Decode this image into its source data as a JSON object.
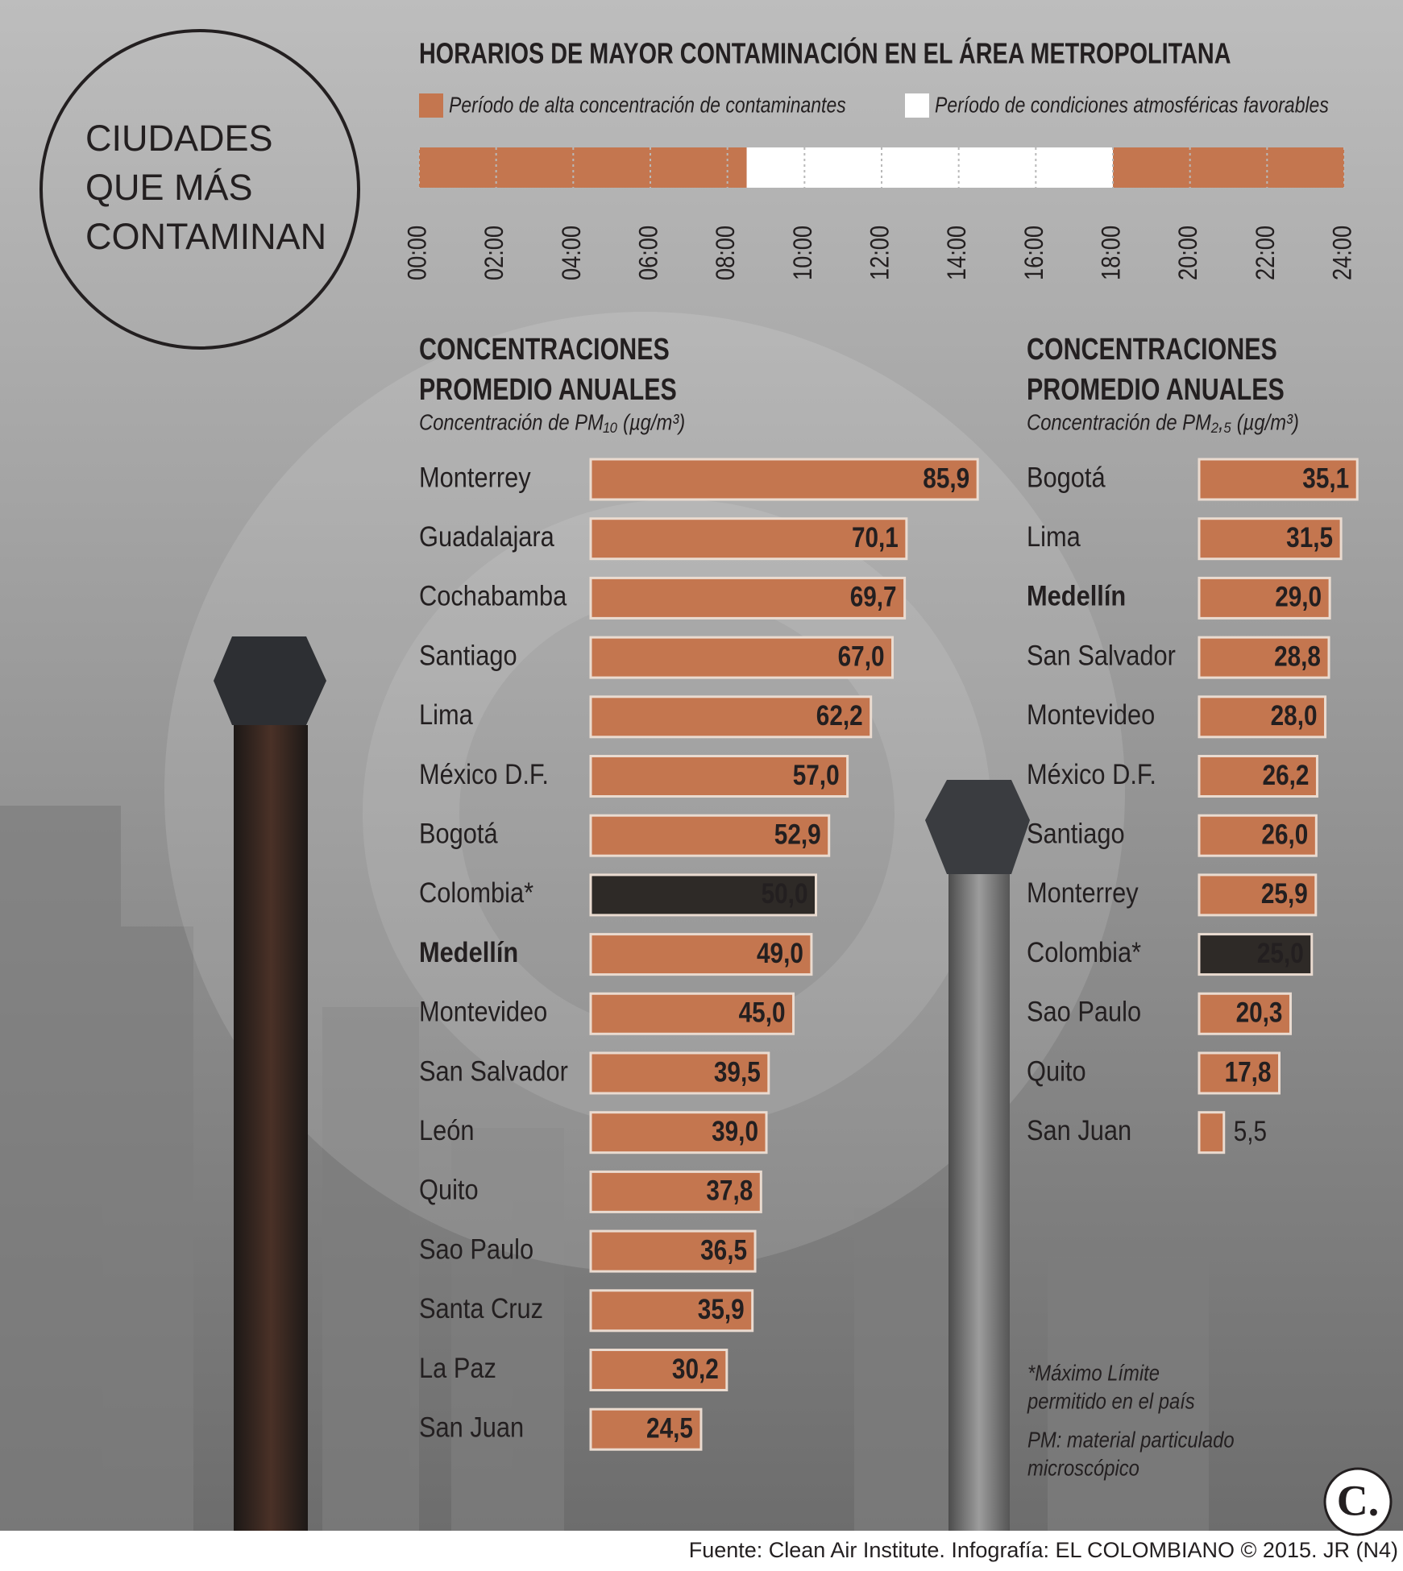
{
  "badge": {
    "lines": [
      "CIUDADES",
      "QUE MÁS",
      "CONTAMINAN"
    ]
  },
  "chart_data": [
    {
      "type": "timeline",
      "title": "HORARIOS DE MAYOR CONTAMINACIÓN EN EL ÁREA METROPOLITANA",
      "xlim": [
        0,
        24
      ],
      "xticks": [
        {
          "value": 0,
          "label": "00:00"
        },
        {
          "value": 2,
          "label": "02:00"
        },
        {
          "value": 4,
          "label": "04:00"
        },
        {
          "value": 6,
          "label": "06:00"
        },
        {
          "value": 8,
          "label": "08:00"
        },
        {
          "value": 10,
          "label": "10:00"
        },
        {
          "value": 12,
          "label": "12:00"
        },
        {
          "value": 14,
          "label": "14:00"
        },
        {
          "value": 16,
          "label": "16:00"
        },
        {
          "value": 18,
          "label": "18:00"
        },
        {
          "value": 20,
          "label": "20:00"
        },
        {
          "value": 22,
          "label": "22:00"
        },
        {
          "value": 24,
          "label": "24:00"
        }
      ],
      "series": [
        {
          "name": "Período de alta concentración de contaminantes",
          "color": "#c4764f",
          "values": [
            [
              0,
              8.5
            ],
            [
              18,
              24
            ]
          ]
        },
        {
          "name": "Período de condiciones atmosféricas favorables",
          "color": "#ffffff",
          "values": [
            [
              8.5,
              18
            ]
          ]
        }
      ]
    },
    {
      "type": "bar",
      "title": [
        "CONCENTRACIONES",
        "PROMEDIO ANUALES"
      ],
      "subtitle": "Concentración de PM₁₀ (µg/m³)",
      "categories": [
        "Monterrey",
        "Guadalajara",
        "Cochabamba",
        "Santiago",
        "Lima",
        "México D.F.",
        "Bogotá",
        "Colombia*",
        "Medellín",
        "Montevideo",
        "San Salvador",
        "León",
        "Quito",
        "Sao Paulo",
        "Santa Cruz",
        "La Paz",
        "San Juan"
      ],
      "values": [
        85.9,
        70.1,
        69.7,
        67.0,
        62.2,
        57.0,
        52.9,
        50.0,
        49.0,
        45.0,
        39.5,
        39.0,
        37.8,
        36.5,
        35.9,
        30.2,
        24.5
      ],
      "value_labels": [
        "85,9",
        "70,1",
        "69,7",
        "67,0",
        "62,2",
        "57,0",
        "52,9",
        "50,0",
        "49,0",
        "45,0",
        "39,5",
        "39,0",
        "37,8",
        "36,5",
        "35,9",
        "30,2",
        "24,5"
      ],
      "colors": [
        "#c4764f",
        "#c4764f",
        "#c4764f",
        "#c4764f",
        "#c4764f",
        "#c4764f",
        "#c4764f",
        "#2e2a27",
        "#c4764f",
        "#c4764f",
        "#c4764f",
        "#c4764f",
        "#c4764f",
        "#c4764f",
        "#c4764f",
        "#c4764f",
        "#c4764f"
      ],
      "bold_category": 8
    },
    {
      "type": "bar",
      "title": [
        "CONCENTRACIONES",
        "PROMEDIO ANUALES"
      ],
      "subtitle": "Concentración de PM₂,₅ (µg/m³)",
      "categories": [
        "Bogotá",
        "Lima",
        "Medellín",
        "San Salvador",
        "Montevideo",
        "México D.F.",
        "Santiago",
        "Monterrey",
        "Colombia*",
        "Sao Paulo",
        "Quito",
        "San Juan"
      ],
      "values": [
        35.1,
        31.5,
        29.0,
        28.8,
        28.0,
        26.2,
        26.0,
        25.9,
        25.0,
        20.3,
        17.8,
        5.5
      ],
      "value_labels": [
        "35,1",
        "31,5",
        "29,0",
        "28,8",
        "28,0",
        "26,2",
        "26,0",
        "25,9",
        "25,0",
        "20,3",
        "17,8",
        "5,5"
      ],
      "colors": [
        "#c4764f",
        "#c4764f",
        "#c4764f",
        "#c4764f",
        "#c4764f",
        "#c4764f",
        "#c4764f",
        "#c4764f",
        "#2e2a27",
        "#c4764f",
        "#c4764f",
        "#c4764f"
      ],
      "bold_category": 2
    }
  ],
  "notes": [
    [
      "*Máximo Límite",
      "permitido en el país"
    ],
    [
      "PM: material particulado",
      "microscópico"
    ]
  ],
  "logo": "C.",
  "source": "Fuente: Clean Air Institute. Infografía: EL COLOMBIANO © 2015. JR (N4)"
}
